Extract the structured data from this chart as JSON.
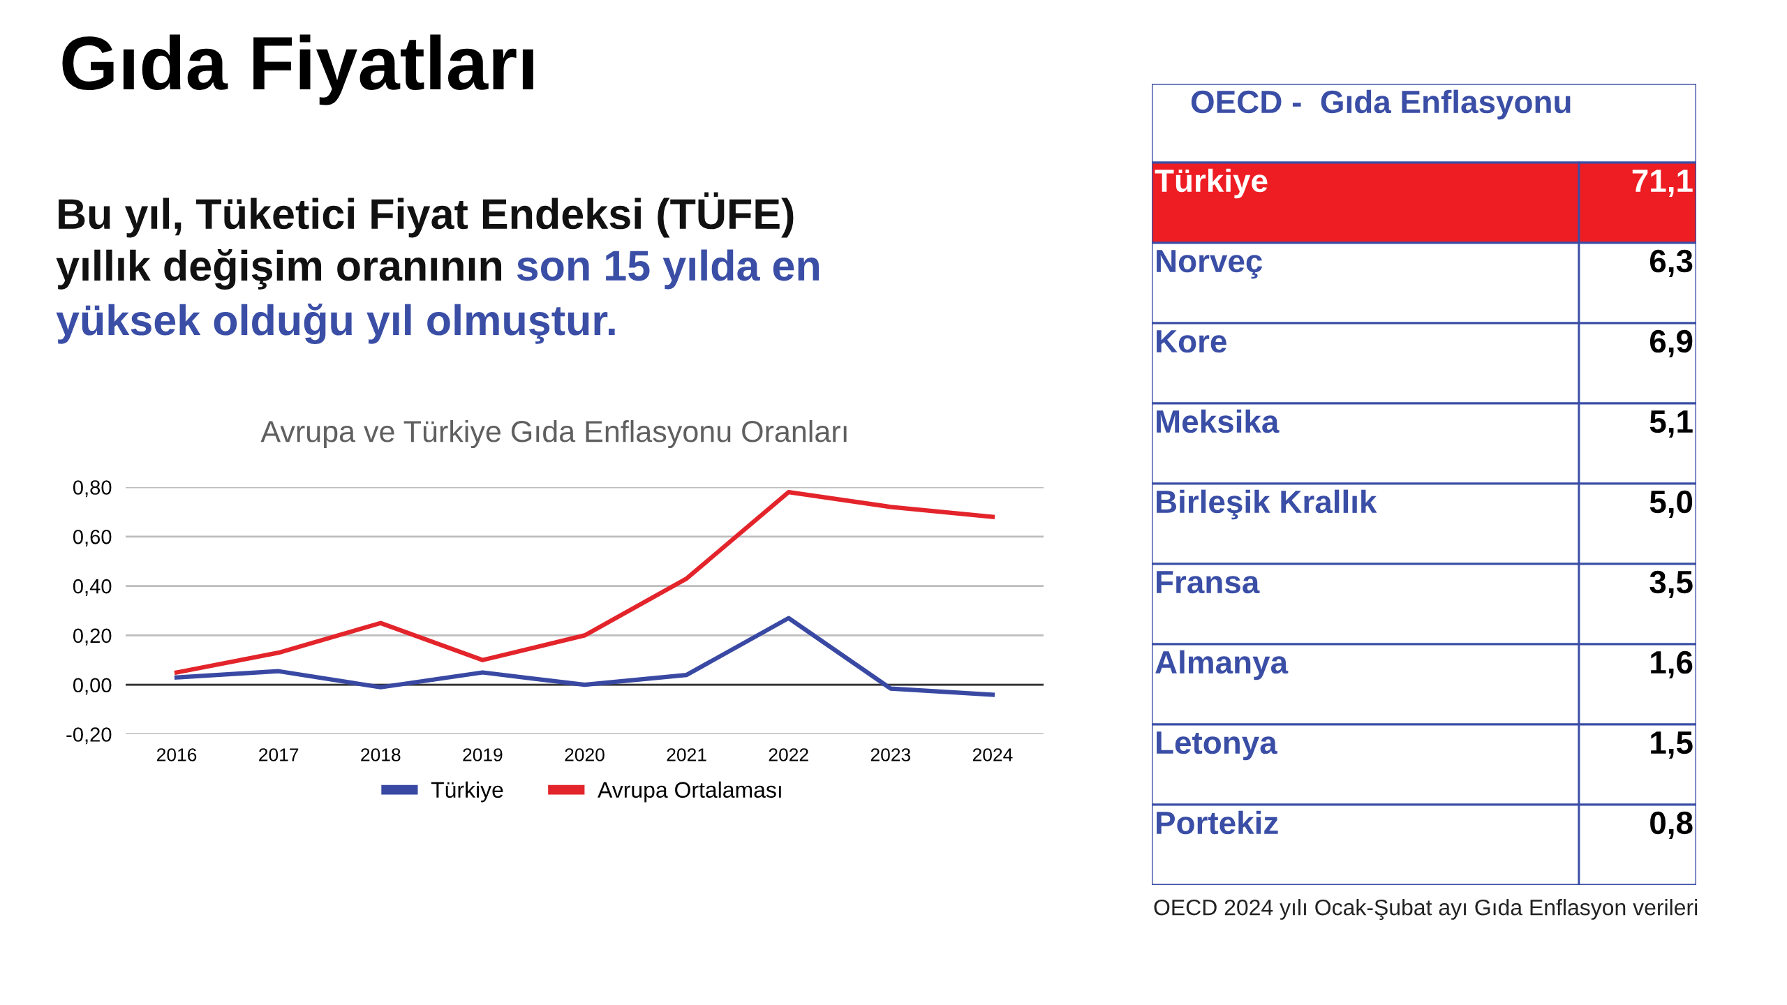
{
  "chart_data": [
    {
      "type": "other",
      "title": "Gıda Fiyatları",
      "subtitle": [
        "Bu yıl, Tüketici Fiyat Endeksi (TÜFE)\nyıllık değişim oranının ",
        "son 15 yılda en\nyüksek olduğu yıl olmuştur."
      ],
      "colors": [
        "#111111",
        "#3a4ea6"
      ]
    },
    {
      "type": "line",
      "title": "Avrupa ve Türkiye Gıda Enflasyonu Oranları",
      "categories": [
        "2016",
        "2017",
        "2018",
        "2019",
        "2020",
        "2021",
        "2022",
        "2023",
        "2024"
      ],
      "series": [
        {
          "name": "Türkiye",
          "color": "#3949a3",
          "values": [
            0.03,
            0.055,
            -0.01,
            0.05,
            0.0,
            0.04,
            0.27,
            -0.015,
            -0.04
          ]
        },
        {
          "name": "Avrupa Ortalaması",
          "color": "#e3242b",
          "values": [
            0.05,
            0.13,
            0.25,
            0.1,
            0.2,
            0.43,
            0.78,
            0.72,
            0.68
          ]
        }
      ],
      "ylim": [
        -0.2,
        0.8
      ],
      "yticks": [
        {
          "value": -0.2,
          "label": "-0,20"
        },
        {
          "value": 0,
          "label": "0,00"
        },
        {
          "value": 0.2,
          "label": "0,20"
        },
        {
          "value": 0.4,
          "label": "0,40"
        },
        {
          "value": 0.6,
          "label": "0,60"
        },
        {
          "value": 0.8,
          "label": "0,80"
        }
      ],
      "ref_lines": [
        {
          "axis": "y",
          "value": 0,
          "color": "#333333"
        }
      ],
      "grid": "y",
      "legend": "bottom",
      "line_style": "solid"
    },
    {
      "type": "other",
      "title": "OECD -  Gıda Enflasyonu",
      "categories": [
        "Türkiye",
        "Norveç",
        "Kore",
        "Meksika",
        "Birleşik Krallık",
        "Fransa",
        "Almanya",
        "Letonya",
        "Portekiz"
      ],
      "value_labels": [
        "71,1",
        "6,3",
        "6,9",
        "5,1",
        "5,0",
        "3,5",
        "1,6",
        "1,5",
        "0,8"
      ],
      "colors": [
        "#ee1d23",
        "#ffffff",
        "#ffffff",
        "#ffffff",
        "#ffffff",
        "#ffffff",
        "#ffffff",
        "#ffffff",
        "#ffffff"
      ],
      "annotations": [
        "OECD 2024 yılı Ocak-Şubat ayı Gıda Enflasyon verileri"
      ]
    }
  ]
}
